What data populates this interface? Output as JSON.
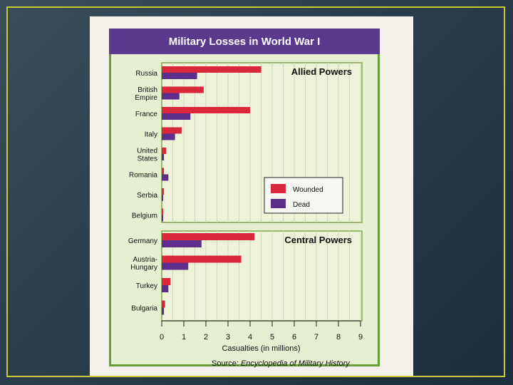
{
  "chart_data": {
    "type": "bar",
    "title": "Military Losses in World War I",
    "xlabel": "Casualties (in millions)",
    "xlim": [
      0,
      9
    ],
    "xticks": [
      0,
      1,
      2,
      3,
      4,
      5,
      6,
      7,
      8,
      9
    ],
    "legend": {
      "placement": "lower-right of Allied Powers panel",
      "entries": [
        "Wounded",
        "Dead"
      ]
    },
    "colors": {
      "Wounded": "#d9283a",
      "Dead": "#5d2f8a"
    },
    "panels": [
      {
        "title": "Allied Powers",
        "categories": [
          "Russia",
          "British Empire",
          "France",
          "Italy",
          "United States",
          "Romania",
          "Serbia",
          "Belgium"
        ],
        "labels": [
          [
            "Russia"
          ],
          [
            "British",
            "Empire"
          ],
          [
            "France"
          ],
          [
            "Italy"
          ],
          [
            "United",
            "States"
          ],
          [
            "Romania"
          ],
          [
            "Serbia"
          ],
          [
            "Belgium"
          ]
        ],
        "series": [
          {
            "name": "Wounded",
            "values": [
              4.5,
              1.9,
              4.0,
              0.9,
              0.2,
              0.1,
              0.1,
              0.05
            ]
          },
          {
            "name": "Dead",
            "values": [
              1.6,
              0.8,
              1.3,
              0.6,
              0.1,
              0.3,
              0.05,
              0.03
            ]
          }
        ]
      },
      {
        "title": "Central Powers",
        "categories": [
          "Germany",
          "Austria-Hungary",
          "Turkey",
          "Bulgaria"
        ],
        "labels": [
          [
            "Germany"
          ],
          [
            "Austria-",
            "Hungary"
          ],
          [
            "Turkey"
          ],
          [
            "Bulgaria"
          ]
        ],
        "series": [
          {
            "name": "Wounded",
            "values": [
              4.2,
              3.6,
              0.4,
              0.15
            ]
          },
          {
            "name": "Dead",
            "values": [
              1.8,
              1.2,
              0.3,
              0.1
            ]
          }
        ]
      }
    ]
  },
  "source": {
    "prefix": "Source: ",
    "title": "Encyclopedia of Military History"
  }
}
